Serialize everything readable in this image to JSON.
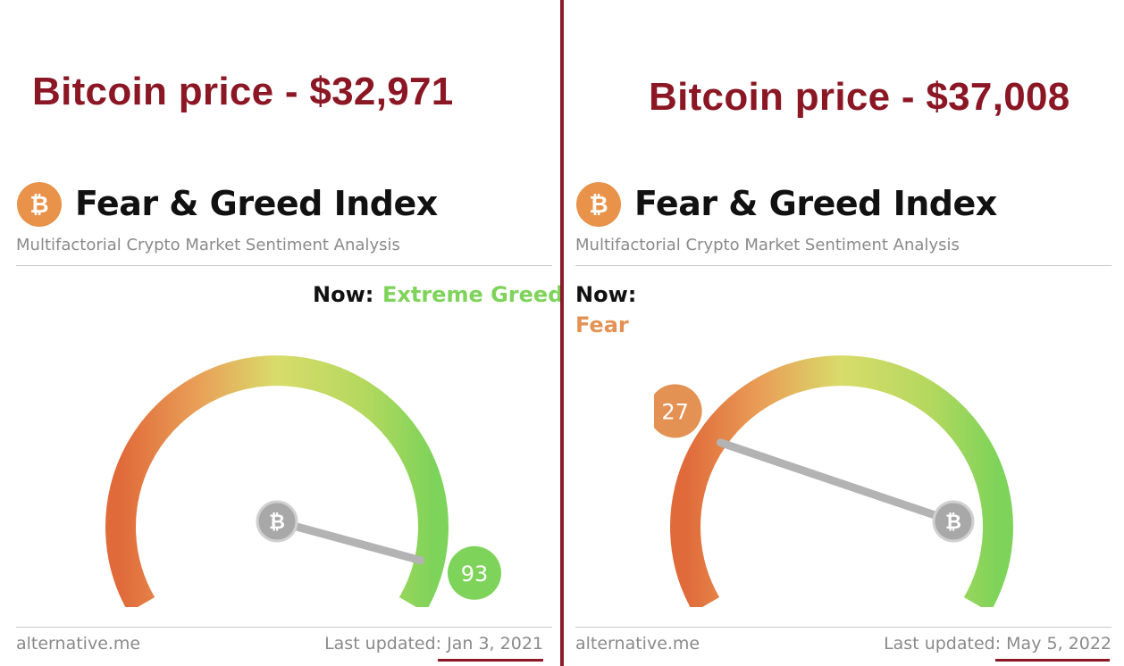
{
  "panels": [
    {
      "price_text": "Bitcoin price - $32,971",
      "title": "Fear & Greed Index",
      "subtitle": "Multifactorial Crypto Market Sentiment Analysis",
      "now_label": "Now:",
      "now_value": "Extreme Greed",
      "now_color": "#7ed35a",
      "index_value": 93,
      "index_text": "93",
      "badge_color": "#7ed35a",
      "footer_site": "alternative.me",
      "footer_updated_label": "Last updated: ",
      "footer_updated_date": "Jan 3, 2021",
      "icon": "bitcoin-icon"
    },
    {
      "price_text": "Bitcoin price - $37,008",
      "title": "Fear & Greed Index",
      "subtitle": "Multifactorial Crypto Market Sentiment Analysis",
      "now_label": "Now:",
      "now_value": "Fear",
      "now_color": "#e49154",
      "index_value": 27,
      "index_text": "27",
      "badge_color": "#e49154",
      "footer_site": "alternative.me",
      "footer_updated_label": "Last updated: ",
      "footer_updated_date": "May 5, 2022",
      "icon": "bitcoin-icon"
    }
  ],
  "colors": {
    "accent_red": "#8b1725",
    "bitcoin_orange": "#e8924a",
    "gauge_start": "#e06a3a",
    "gauge_mid": "#d8dc6a",
    "gauge_end": "#7ed35a"
  }
}
